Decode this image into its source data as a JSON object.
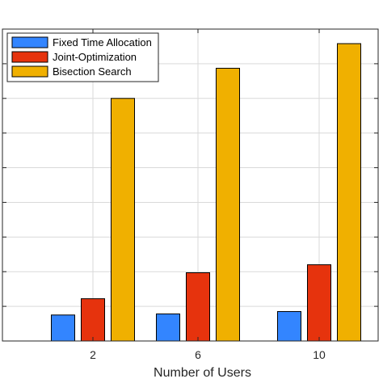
{
  "chart_data": {
    "type": "bar",
    "xlabel": "Number of Users",
    "categories": [
      "2",
      "6",
      "10"
    ],
    "series": [
      {
        "name": "Fixed Time Allocation",
        "color": "#3385ff",
        "values": [
          0.75,
          0.78,
          0.85
        ]
      },
      {
        "name": "Joint-Optimization",
        "color": "#e6330d",
        "values": [
          1.22,
          1.97,
          2.2
        ]
      },
      {
        "name": "Bisection Search",
        "color": "#f0b000",
        "values": [
          7.0,
          7.87,
          8.58
        ]
      }
    ],
    "ylim": [
      0,
      9
    ],
    "ytick_count": 9,
    "grid": true,
    "legend_position": "top-left"
  }
}
